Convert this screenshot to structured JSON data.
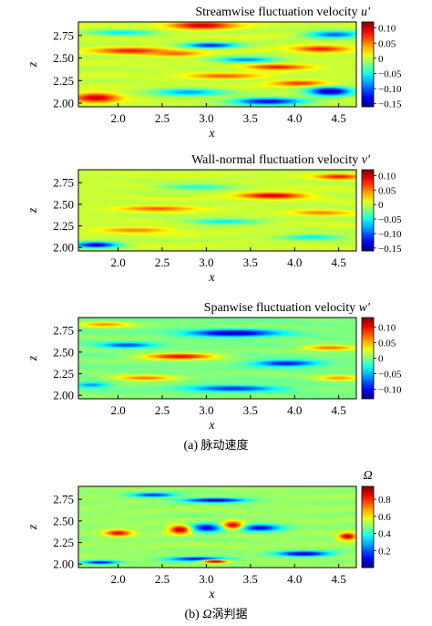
{
  "captions": {
    "a_label": "(a)",
    "a_text": "脉动速度",
    "b_label": "(b)",
    "b_symbol": "Ω",
    "b_text": "涡判据"
  },
  "chart_data": [
    {
      "type": "heatmap",
      "title_text": "Streamwise fluctuation velocity ",
      "title_symbol": "u′",
      "xlabel": "x",
      "ylabel": "z",
      "xlim": [
        1.55,
        4.7
      ],
      "ylim": [
        1.96,
        2.9
      ],
      "xticks": [
        2.0,
        2.5,
        3.0,
        3.5,
        4.0,
        4.5
      ],
      "xtick_labels": [
        "2.0",
        "2.5",
        "3.0",
        "3.5",
        "4.0",
        "4.5"
      ],
      "yticks": [
        2.0,
        2.25,
        2.5,
        2.75
      ],
      "ytick_labels": [
        "2.00",
        "2.25",
        "2.50",
        "2.75"
      ],
      "colormap": "jet",
      "colorbar_range": [
        -0.16,
        0.12
      ],
      "colorbar_ticks": [
        0.1,
        0.05,
        0,
        -0.05,
        -0.1,
        -0.15
      ],
      "colorbar_tick_labels": [
        "0.10",
        "0.05",
        "0",
        "−0.05",
        "−0.10",
        "−0.15"
      ],
      "background_value": 0.0,
      "structures": [
        {
          "x": 2.95,
          "z": 2.86,
          "value": 0.1,
          "lx": 0.35,
          "lz": 0.04
        },
        {
          "x": 2.15,
          "z": 2.58,
          "value": 0.08,
          "lx": 0.4,
          "lz": 0.035
        },
        {
          "x": 2.65,
          "z": 2.55,
          "value": 0.06,
          "lx": 0.3,
          "lz": 0.03
        },
        {
          "x": 3.05,
          "z": 2.64,
          "value": -0.12,
          "lx": 0.3,
          "lz": 0.03
        },
        {
          "x": 3.45,
          "z": 2.48,
          "value": -0.09,
          "lx": 0.35,
          "lz": 0.03
        },
        {
          "x": 3.8,
          "z": 2.4,
          "value": 0.08,
          "lx": 0.35,
          "lz": 0.03
        },
        {
          "x": 4.3,
          "z": 2.6,
          "value": 0.08,
          "lx": 0.3,
          "lz": 0.035
        },
        {
          "x": 4.45,
          "z": 2.76,
          "value": -0.1,
          "lx": 0.3,
          "lz": 0.04
        },
        {
          "x": 1.75,
          "z": 2.06,
          "value": 0.1,
          "lx": 0.25,
          "lz": 0.05
        },
        {
          "x": 2.8,
          "z": 2.12,
          "value": -0.08,
          "lx": 0.4,
          "lz": 0.04
        },
        {
          "x": 3.7,
          "z": 2.02,
          "value": -0.13,
          "lx": 0.4,
          "lz": 0.04
        },
        {
          "x": 4.4,
          "z": 2.13,
          "value": -0.15,
          "lx": 0.25,
          "lz": 0.05
        },
        {
          "x": 3.2,
          "z": 2.3,
          "value": 0.06,
          "lx": 0.4,
          "lz": 0.03
        },
        {
          "x": 2.05,
          "z": 2.78,
          "value": -0.06,
          "lx": 0.35,
          "lz": 0.03
        },
        {
          "x": 4.05,
          "z": 2.22,
          "value": 0.07,
          "lx": 0.3,
          "lz": 0.03
        }
      ]
    },
    {
      "type": "heatmap",
      "title_text": "Wall-normal fluctuation velocity ",
      "title_symbol": "v′",
      "xlabel": "x",
      "ylabel": "z",
      "xlim": [
        1.55,
        4.7
      ],
      "ylim": [
        1.96,
        2.9
      ],
      "xticks": [
        2.0,
        2.5,
        3.0,
        3.5,
        4.0,
        4.5
      ],
      "xtick_labels": [
        "2.0",
        "2.5",
        "3.0",
        "3.5",
        "4.0",
        "4.5"
      ],
      "yticks": [
        2.0,
        2.25,
        2.5,
        2.75
      ],
      "ytick_labels": [
        "2.00",
        "2.25",
        "2.50",
        "2.75"
      ],
      "colormap": "jet",
      "colorbar_range": [
        -0.16,
        0.12
      ],
      "colorbar_ticks": [
        0.1,
        0.05,
        0,
        -0.05,
        -0.1,
        -0.15
      ],
      "colorbar_tick_labels": [
        "0.10",
        "0.05",
        "0",
        "−0.05",
        "−0.10",
        "−0.15"
      ],
      "background_value": 0.0,
      "structures": [
        {
          "x": 3.75,
          "z": 2.6,
          "value": 0.1,
          "lx": 0.35,
          "lz": 0.035
        },
        {
          "x": 1.75,
          "z": 2.03,
          "value": -0.14,
          "lx": 0.25,
          "lz": 0.035
        },
        {
          "x": 2.45,
          "z": 2.45,
          "value": 0.06,
          "lx": 0.4,
          "lz": 0.03
        },
        {
          "x": 4.5,
          "z": 2.82,
          "value": 0.08,
          "lx": 0.25,
          "lz": 0.03
        },
        {
          "x": 3.2,
          "z": 2.3,
          "value": -0.06,
          "lx": 0.4,
          "lz": 0.03
        },
        {
          "x": 2.2,
          "z": 2.2,
          "value": 0.05,
          "lx": 0.4,
          "lz": 0.03
        },
        {
          "x": 4.2,
          "z": 2.12,
          "value": -0.06,
          "lx": 0.35,
          "lz": 0.03
        },
        {
          "x": 2.9,
          "z": 2.7,
          "value": -0.05,
          "lx": 0.4,
          "lz": 0.03
        },
        {
          "x": 4.3,
          "z": 2.4,
          "value": 0.05,
          "lx": 0.3,
          "lz": 0.03
        }
      ]
    },
    {
      "type": "heatmap",
      "title_text": "Spanwise fluctuation velocity ",
      "title_symbol": "w′",
      "xlabel": "x",
      "ylabel": "z",
      "xlim": [
        1.55,
        4.7
      ],
      "ylim": [
        1.96,
        2.9
      ],
      "xticks": [
        2.0,
        2.5,
        3.0,
        3.5,
        4.0,
        4.5
      ],
      "xtick_labels": [
        "2.0",
        "2.5",
        "3.0",
        "3.5",
        "4.0",
        "4.5"
      ],
      "yticks": [
        2.0,
        2.25,
        2.5,
        2.75
      ],
      "ytick_labels": [
        "2.00",
        "2.25",
        "2.50",
        "2.75"
      ],
      "colormap": "jet",
      "colorbar_range": [
        -0.13,
        0.13
      ],
      "colorbar_ticks": [
        0.1,
        0.05,
        0,
        -0.05,
        -0.1
      ],
      "colorbar_tick_labels": [
        "0.10",
        "0.05",
        "0",
        "−0.05",
        "−0.10"
      ],
      "background_value": 0.0,
      "structures": [
        {
          "x": 3.3,
          "z": 2.72,
          "value": -0.12,
          "lx": 0.5,
          "lz": 0.04
        },
        {
          "x": 2.7,
          "z": 2.45,
          "value": 0.1,
          "lx": 0.4,
          "lz": 0.035
        },
        {
          "x": 2.1,
          "z": 2.58,
          "value": -0.08,
          "lx": 0.3,
          "lz": 0.03
        },
        {
          "x": 3.9,
          "z": 2.37,
          "value": -0.1,
          "lx": 0.35,
          "lz": 0.035
        },
        {
          "x": 2.3,
          "z": 2.2,
          "value": 0.07,
          "lx": 0.35,
          "lz": 0.03
        },
        {
          "x": 3.3,
          "z": 2.08,
          "value": -0.09,
          "lx": 0.5,
          "lz": 0.035
        },
        {
          "x": 4.4,
          "z": 2.55,
          "value": 0.07,
          "lx": 0.3,
          "lz": 0.03
        },
        {
          "x": 1.85,
          "z": 2.82,
          "value": 0.06,
          "lx": 0.3,
          "lz": 0.03
        },
        {
          "x": 4.5,
          "z": 2.2,
          "value": 0.06,
          "lx": 0.25,
          "lz": 0.03
        },
        {
          "x": 1.7,
          "z": 2.12,
          "value": -0.06,
          "lx": 0.2,
          "lz": 0.03
        }
      ]
    },
    {
      "type": "heatmap",
      "title_text": "",
      "title_symbol": "",
      "colorbar_label": "Ω",
      "xlabel": "x",
      "ylabel": "z",
      "xlim": [
        1.55,
        4.7
      ],
      "ylim": [
        1.96,
        2.9
      ],
      "xticks": [
        2.0,
        2.5,
        3.0,
        3.5,
        4.0,
        4.5
      ],
      "xtick_labels": [
        "2.0",
        "2.5",
        "3.0",
        "3.5",
        "4.0",
        "4.5"
      ],
      "yticks": [
        2.0,
        2.25,
        2.5,
        2.75
      ],
      "ytick_labels": [
        "2.00",
        "2.25",
        "2.50",
        "2.75"
      ],
      "colormap": "jet",
      "colorbar_range": [
        0.0,
        0.95
      ],
      "colorbar_ticks": [
        0.8,
        0.6,
        0.4,
        0.2
      ],
      "colorbar_tick_labels": [
        "0.8",
        "0.6",
        "0.4",
        "0.2"
      ],
      "background_value": 0.5,
      "structures": [
        {
          "x": 3.1,
          "z": 2.74,
          "value": 0.05,
          "lx": 0.35,
          "lz": 0.025
        },
        {
          "x": 3.0,
          "z": 2.42,
          "value": 0.1,
          "lx": 0.2,
          "lz": 0.05
        },
        {
          "x": 3.6,
          "z": 2.42,
          "value": 0.1,
          "lx": 0.25,
          "lz": 0.04
        },
        {
          "x": 2.7,
          "z": 2.4,
          "value": 0.9,
          "lx": 0.12,
          "lz": 0.05
        },
        {
          "x": 3.3,
          "z": 2.45,
          "value": 0.85,
          "lx": 0.12,
          "lz": 0.05
        },
        {
          "x": 4.6,
          "z": 2.32,
          "value": 0.9,
          "lx": 0.1,
          "lz": 0.04
        },
        {
          "x": 2.0,
          "z": 2.36,
          "value": 0.85,
          "lx": 0.15,
          "lz": 0.035
        },
        {
          "x": 2.9,
          "z": 2.06,
          "value": 0.1,
          "lx": 0.35,
          "lz": 0.025
        },
        {
          "x": 3.1,
          "z": 2.03,
          "value": 0.9,
          "lx": 0.15,
          "lz": 0.02
        },
        {
          "x": 4.1,
          "z": 2.12,
          "value": 0.05,
          "lx": 0.3,
          "lz": 0.03
        },
        {
          "x": 2.4,
          "z": 2.8,
          "value": 0.15,
          "lx": 0.25,
          "lz": 0.025
        },
        {
          "x": 1.8,
          "z": 2.02,
          "value": 0.1,
          "lx": 0.2,
          "lz": 0.02
        }
      ]
    }
  ]
}
